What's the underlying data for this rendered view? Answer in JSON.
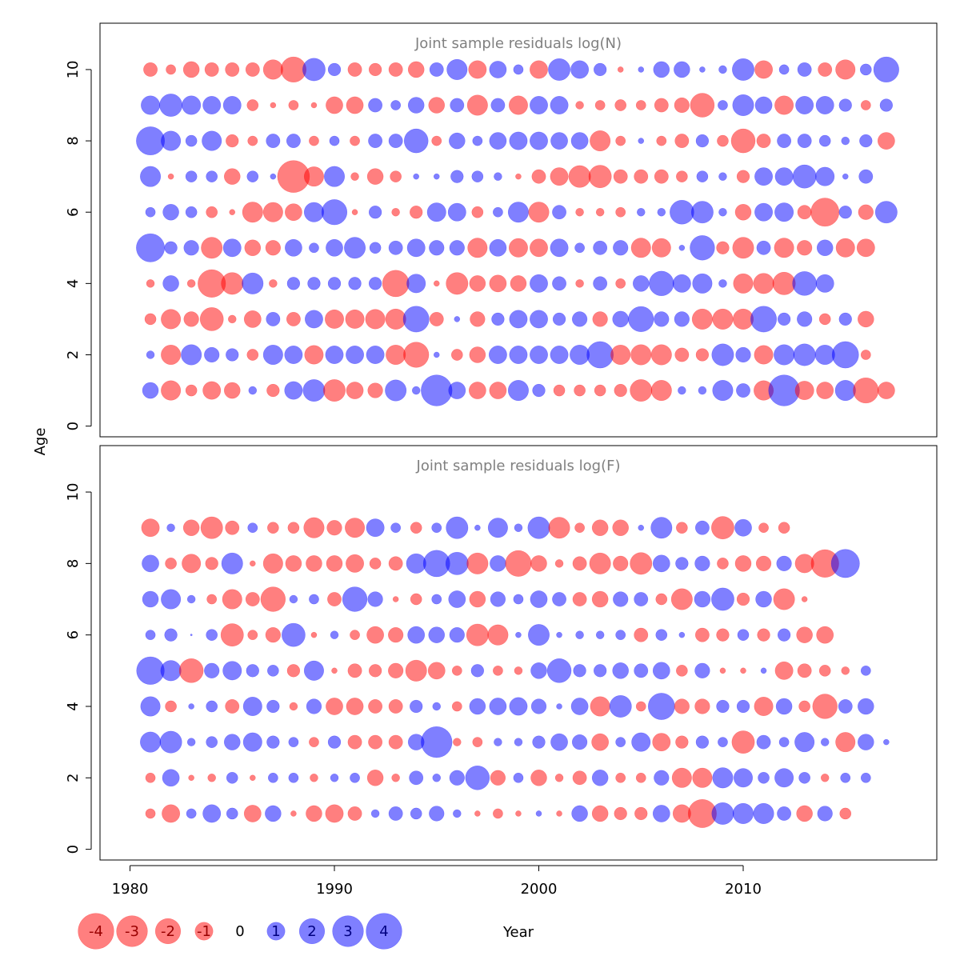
{
  "colors": {
    "positive": "#0000ff",
    "negative": "#ff0000",
    "title": "#808080",
    "frame": "#000000"
  },
  "chart_data": {
    "type": "scatter",
    "subtype": "bubble",
    "x": [
      1981,
      1982,
      1983,
      1984,
      1985,
      1986,
      1987,
      1988,
      1989,
      1990,
      1991,
      1992,
      1993,
      1994,
      1995,
      1996,
      1997,
      1998,
      1999,
      2000,
      2001,
      2002,
      2003,
      2004,
      2005,
      2006,
      2007,
      2008,
      2009,
      2010,
      2011,
      2012,
      2013,
      2014,
      2015,
      2016,
      2017
    ],
    "xlabel": "Year",
    "ylabel": "Age",
    "xlim": [
      1978.5,
      2018.5
    ],
    "x_ticks": [
      1980,
      1990,
      2000,
      2010
    ],
    "legend": {
      "placement": "bottom-left",
      "values": [
        -4,
        -3,
        -2,
        -1,
        0,
        1,
        2,
        3,
        4
      ],
      "labels": [
        "-4",
        "-3",
        "-2",
        "-1",
        "0",
        "1",
        "2",
        "3",
        "4"
      ]
    },
    "panels": [
      {
        "title": "Joint sample residuals log(N)",
        "ylim": [
          -0.3,
          11.3
        ],
        "y_ticks": [
          0,
          2,
          4,
          6,
          8,
          10
        ],
        "ages": [
          1,
          2,
          3,
          4,
          5,
          6,
          7,
          8,
          9,
          10
        ],
        "residuals": [
          [
            0.8,
            -1.2,
            -0.4,
            -1.0,
            -0.8,
            0.2,
            -0.5,
            1.0,
            1.5,
            -1.5,
            -0.9,
            -0.7,
            1.4,
            0.2,
            3.0,
            0.9,
            -0.9,
            -0.9,
            1.3,
            0.5,
            -0.4,
            -0.4,
            -0.4,
            -0.5,
            -1.5,
            -1.3,
            0.2,
            0.2,
            1.3,
            0.6,
            -1.2,
            3.0,
            -1.1,
            -0.9,
            1.3,
            -2.0,
            -0.9
          ],
          [
            0.2,
            -1.2,
            1.3,
            0.7,
            0.5,
            -0.4,
            1.2,
            1.0,
            -1.1,
            1.0,
            1.0,
            1.0,
            -1.2,
            -2.0,
            0.1,
            -0.4,
            -0.8,
            1.0,
            1.0,
            1.0,
            1.0,
            1.2,
            2.2,
            -1.2,
            -1.3,
            -1.3,
            -0.6,
            -0.5,
            1.5,
            0.7,
            -1.1,
            1.3,
            1.5,
            1.2,
            2.2,
            -0.3
          ],
          [
            -0.4,
            -1.2,
            -0.7,
            -1.7,
            -0.2,
            -0.9,
            0.6,
            -0.6,
            1.0,
            -1.1,
            -1.1,
            -1.2,
            -1.3,
            2.1,
            -0.6,
            0.1,
            -0.7,
            0.5,
            1.0,
            1.0,
            0.5,
            0.7,
            -0.7,
            0.8,
            2.0,
            0.7,
            0.7,
            -1.3,
            -1.3,
            -1.3,
            2.1,
            0.5,
            0.7,
            -0.4,
            0.5,
            -0.8
          ],
          [
            -0.2,
            0.8,
            -0.2,
            -2.4,
            -1.5,
            1.4,
            -0.2,
            0.5,
            0.5,
            0.5,
            0.5,
            0.5,
            -2.2,
            1.1,
            -0.1,
            -1.5,
            -0.8,
            -0.9,
            -0.8,
            1.0,
            0.6,
            -0.2,
            0.6,
            -0.3,
            0.8,
            1.9,
            1.0,
            1.2,
            0.2,
            -1.2,
            -1.3,
            -1.6,
            1.8,
            1.0
          ],
          [
            2.5,
            0.5,
            0.7,
            -1.4,
            1.0,
            -0.8,
            -0.7,
            0.9,
            0.3,
            0.9,
            1.4,
            0.4,
            0.6,
            1.0,
            0.7,
            0.7,
            -1.2,
            0.9,
            -1.1,
            -1.0,
            1.0,
            0.3,
            0.6,
            0.7,
            -1.2,
            -1.1,
            0.1,
            1.9,
            -0.5,
            -1.4,
            0.6,
            -1.2,
            -0.7,
            0.8,
            -1.1,
            -1.0
          ],
          [
            0.3,
            0.8,
            0.4,
            -0.4,
            -0.1,
            -1.3,
            -1.2,
            -0.9,
            1.2,
            2.0,
            -0.1,
            0.5,
            -0.2,
            -0.5,
            1.1,
            1.0,
            -0.4,
            0.3,
            1.3,
            -1.3,
            0.6,
            -0.2,
            -0.2,
            -0.3,
            0.2,
            0.2,
            1.8,
            1.5,
            0.2,
            -0.8,
            1.0,
            1.1,
            -0.6,
            -2.5,
            0.5,
            -0.7,
            1.5
          ],
          [
            1.3,
            -0.1,
            0.4,
            0.4,
            -0.8,
            0.4,
            0.1,
            -3.2,
            -1.2,
            1.3,
            -0.2,
            -0.8,
            -0.4,
            0.1,
            0.1,
            0.5,
            0.4,
            0.2,
            -0.1,
            -0.6,
            -1.0,
            -1.5,
            -1.6,
            -0.6,
            -0.6,
            -0.6,
            -0.4,
            0.4,
            0.2,
            -0.5,
            1.0,
            1.0,
            1.7,
            1.1,
            0.1,
            0.6
          ],
          [
            2.5,
            1.2,
            0.4,
            1.2,
            -0.5,
            -0.3,
            0.6,
            0.6,
            -0.3,
            0.3,
            -0.3,
            0.6,
            0.6,
            1.8,
            -0.3,
            0.8,
            0.3,
            0.9,
            1.0,
            1.0,
            0.9,
            0.9,
            -1.3,
            -0.3,
            0.1,
            -0.3,
            -0.6,
            0.5,
            -0.4,
            -1.8,
            -0.6,
            0.6,
            0.6,
            0.4,
            0.2,
            0.5,
            -0.9
          ],
          [
            1.1,
            1.6,
            1.1,
            1.0,
            1.0,
            -0.4,
            -0.1,
            -0.3,
            -0.1,
            -0.9,
            -0.9,
            0.6,
            0.3,
            0.8,
            -0.8,
            0.6,
            -1.3,
            0.6,
            -1.1,
            1.0,
            1.0,
            -0.2,
            -0.3,
            -0.4,
            -0.3,
            -0.6,
            -0.7,
            -1.8,
            0.3,
            1.4,
            0.9,
            -1.1,
            1.0,
            1.0,
            0.5,
            -0.3,
            0.5
          ],
          [
            -0.6,
            -0.3,
            -0.8,
            -0.6,
            -0.6,
            -0.6,
            -1.2,
            -2.0,
            1.6,
            0.5,
            -0.6,
            -0.5,
            -0.6,
            -0.8,
            0.6,
            1.3,
            -1.0,
            0.9,
            0.3,
            -1.0,
            1.5,
            1.0,
            0.5,
            -0.1,
            0.1,
            0.8,
            0.8,
            0.1,
            0.2,
            1.5,
            -1.0,
            0.3,
            0.6,
            -0.6,
            -1.2,
            0.4,
            2.0
          ]
        ]
      },
      {
        "title": "Joint sample residuals log(F)",
        "ylim": [
          -0.3,
          11.3
        ],
        "y_ticks": [
          0,
          2,
          4,
          6,
          8,
          10
        ],
        "ages": [
          1,
          2,
          3,
          4,
          5,
          6,
          7,
          8,
          9
        ],
        "residuals": [
          [
            -0.3,
            -1.0,
            0.3,
            1.0,
            0.4,
            -0.9,
            0.8,
            -0.1,
            -0.8,
            -1.0,
            -0.6,
            0.2,
            0.6,
            0.4,
            0.7,
            0.2,
            -0.1,
            -0.3,
            -0.1,
            0.1,
            -0.1,
            0.8,
            -0.8,
            -0.5,
            -0.5,
            0.9,
            -1.0,
            -2.5,
            1.5,
            1.3,
            1.3,
            0.6,
            -0.8,
            0.7,
            -0.4
          ],
          [
            -0.3,
            0.9,
            -0.1,
            -0.2,
            0.4,
            -0.1,
            0.3,
            0.3,
            -0.2,
            0.2,
            0.3,
            -0.8,
            -0.2,
            0.6,
            0.2,
            0.7,
            1.8,
            -0.7,
            0.3,
            -0.8,
            -0.2,
            -0.6,
            0.8,
            -0.3,
            -0.3,
            0.7,
            -1.2,
            -1.2,
            1.3,
            1.1,
            0.4,
            1.1,
            0.4,
            -0.2,
            0.3,
            0.3
          ],
          [
            1.3,
            1.5,
            0.2,
            0.4,
            0.8,
            1.1,
            0.5,
            0.3,
            -0.3,
            0.5,
            -0.6,
            -0.6,
            -0.6,
            0.8,
            3.0,
            -0.2,
            -0.3,
            0.2,
            0.2,
            0.5,
            0.9,
            0.7,
            -0.9,
            0.3,
            1.1,
            -1.0,
            -0.5,
            0.5,
            0.3,
            -1.6,
            0.6,
            0.3,
            1.2,
            0.2,
            -1.2,
            0.8,
            0.1
          ],
          [
            1.2,
            -0.4,
            0.1,
            0.4,
            -0.6,
            1.1,
            0.5,
            -0.2,
            0.7,
            -0.9,
            -0.9,
            -0.6,
            -0.6,
            0.5,
            0.2,
            -0.3,
            0.8,
            0.9,
            1.0,
            0.7,
            0.1,
            0.9,
            -1.2,
            1.5,
            -0.3,
            2.2,
            -0.7,
            -0.7,
            0.5,
            0.5,
            -1.1,
            0.8,
            -0.4,
            -1.9,
            0.6,
            0.8
          ],
          [
            2.4,
            1.3,
            -1.8,
            0.7,
            1.1,
            0.5,
            0.4,
            -0.5,
            1.2,
            -0.1,
            -0.6,
            -0.5,
            -0.7,
            -1.4,
            -0.9,
            -0.3,
            0.5,
            -0.3,
            -0.2,
            0.8,
            1.8,
            0.5,
            0.5,
            0.8,
            0.6,
            0.9,
            -0.4,
            0.7,
            -0.1,
            -0.1,
            0.1,
            -1.0,
            -0.6,
            -0.4,
            -0.2,
            0.3
          ],
          [
            0.3,
            0.5,
            0.0,
            0.4,
            -1.6,
            -0.3,
            -0.7,
            1.7,
            -0.1,
            0.2,
            -0.3,
            -0.9,
            -0.7,
            0.9,
            0.8,
            0.7,
            -1.5,
            -1.3,
            0.1,
            1.4,
            0.1,
            0.2,
            0.2,
            0.3,
            -0.6,
            0.4,
            0.1,
            -0.6,
            -0.5,
            0.4,
            -0.5,
            0.5,
            -0.8,
            -0.9
          ],
          [
            0.8,
            1.2,
            0.2,
            -0.3,
            -1.2,
            -0.6,
            -1.9,
            0.2,
            0.3,
            -0.6,
            1.9,
            0.7,
            -0.1,
            -0.4,
            0.3,
            0.9,
            -0.8,
            0.7,
            0.3,
            0.9,
            0.6,
            -0.6,
            -0.8,
            0.7,
            0.6,
            -0.4,
            -1.4,
            0.8,
            1.6,
            -0.5,
            0.8,
            -1.4,
            -0.1
          ],
          [
            0.9,
            -0.4,
            -1.1,
            -0.5,
            1.4,
            -0.1,
            -1.2,
            -0.8,
            -0.8,
            -0.8,
            -1.0,
            -0.4,
            -0.6,
            1.2,
            2.2,
            1.6,
            -1.4,
            0.8,
            -2.1,
            -0.8,
            -0.2,
            -0.6,
            -1.4,
            -0.7,
            -1.5,
            0.9,
            0.5,
            0.7,
            -0.4,
            -0.8,
            -0.7,
            0.7,
            -1.1,
            -2.4,
            2.5
          ],
          [
            -1.0,
            0.2,
            -0.8,
            -1.5,
            -0.6,
            0.3,
            -0.4,
            -0.4,
            -1.3,
            -0.7,
            -1.2,
            1.0,
            0.3,
            -0.4,
            0.3,
            1.5,
            0.1,
            1.2,
            0.2,
            1.5,
            -1.4,
            -0.3,
            -0.8,
            -0.8,
            0.1,
            1.4,
            -0.4,
            0.6,
            -1.6,
            0.9,
            -0.3,
            -0.4
          ]
        ]
      }
    ]
  }
}
